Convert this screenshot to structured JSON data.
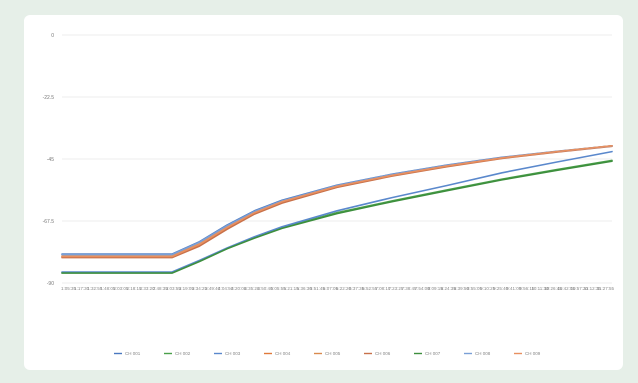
{
  "chart_data": {
    "type": "line",
    "title": "",
    "xlabel": "",
    "ylabel": "",
    "ylim": [
      -90,
      0
    ],
    "yticks": [
      0,
      -22.5,
      -45,
      -67.5,
      -90
    ],
    "ytick_labels": [
      "0",
      "-22.5",
      "-45",
      "-67.5",
      "-90"
    ],
    "x_tick_labels": [
      "1:05:35",
      "1:17:30",
      "1:32:55",
      "1:48:05",
      "2:03:05",
      "2:18:15",
      "2:33:20",
      "2:48:35",
      "3:03:55",
      "3:19:05",
      "3:34:25",
      "3:49:40",
      "4:04:50",
      "4:20:05",
      "4:35:20",
      "4:50:40",
      "5:05:55",
      "5:21:15",
      "5:36:30",
      "5:51:45",
      "6:07:05",
      "6:22:20",
      "6:37:35",
      "6:52:55",
      "7:08:10",
      "7:23:25",
      "7:38:45",
      "7:54:00",
      "8:09:15",
      "8:24:35",
      "8:39:50",
      "8:55:05",
      "9:10:25",
      "9:25:40",
      "9:41:00",
      "9:56:15",
      "10:11:30",
      "10:26:45",
      "10:42:05",
      "10:57:20",
      "11:12:35",
      "11:27:55"
    ],
    "x": [
      0,
      0.125,
      0.2,
      0.25,
      0.3,
      0.35,
      0.4,
      0.5,
      0.6,
      0.7,
      0.8,
      0.9,
      1.0
    ],
    "series": [
      {
        "name": "CH 001",
        "color": "#4a78c0",
        "values": [
          -79.5,
          -79.5,
          -79.5,
          -75.0,
          -69.0,
          -63.8,
          -60.0,
          -54.5,
          -50.5,
          -47.2,
          -44.4,
          -42.2,
          -40.2
        ]
      },
      {
        "name": "CH 002",
        "color": "#4aa04a",
        "values": [
          -86.2,
          -86.2,
          -86.2,
          -82.0,
          -77.5,
          -73.5,
          -70.0,
          -64.5,
          -60.2,
          -56.2,
          -52.3,
          -48.8,
          -45.5
        ]
      },
      {
        "name": "CH 003",
        "color": "#5a88cc",
        "values": [
          -86.0,
          -86.0,
          -86.0,
          -81.8,
          -77.3,
          -73.2,
          -69.6,
          -63.8,
          -59.0,
          -54.6,
          -50.0,
          -46.1,
          -42.3
        ]
      },
      {
        "name": "CH 004",
        "color": "#e07a3a",
        "values": [
          -80.5,
          -80.5,
          -80.5,
          -76.2,
          -70.0,
          -64.6,
          -60.6,
          -55.0,
          -51.0,
          -47.6,
          -44.7,
          -42.4,
          -40.3
        ]
      },
      {
        "name": "CH 005",
        "color": "#d98a4e",
        "values": [
          -80.2,
          -80.2,
          -80.2,
          -75.8,
          -69.7,
          -64.3,
          -60.4,
          -54.8,
          -50.8,
          -47.5,
          -44.6,
          -42.3,
          -40.2
        ]
      },
      {
        "name": "CH 006",
        "color": "#c8714a",
        "values": [
          -80.8,
          -80.8,
          -80.8,
          -76.6,
          -70.5,
          -65.0,
          -61.0,
          -55.3,
          -51.2,
          -47.8,
          -44.8,
          -42.5,
          -40.4
        ]
      },
      {
        "name": "CH 007",
        "color": "#3d8f3d",
        "values": [
          -86.4,
          -86.4,
          -86.4,
          -82.2,
          -77.6,
          -73.7,
          -70.2,
          -64.8,
          -60.5,
          -56.5,
          -52.6,
          -49.1,
          -45.8
        ]
      },
      {
        "name": "CH 008",
        "color": "#7a9fd6",
        "values": [
          -79.7,
          -79.7,
          -79.7,
          -75.2,
          -69.2,
          -64.0,
          -60.2,
          -54.6,
          -50.6,
          -47.3,
          -44.5,
          -42.3,
          -40.3
        ]
      },
      {
        "name": "CH 009",
        "color": "#e89060",
        "values": [
          -80.4,
          -80.4,
          -80.4,
          -76.0,
          -69.9,
          -64.5,
          -60.5,
          -54.9,
          -50.9,
          -47.5,
          -44.6,
          -42.3,
          -40.2
        ]
      }
    ],
    "legend": [
      "CH 001",
      "CH 002",
      "CH 003",
      "CH 004",
      "CH 005",
      "CH 006",
      "CH 007",
      "CH 008",
      "CH 009"
    ],
    "legend_position": "bottom",
    "grid": true
  }
}
